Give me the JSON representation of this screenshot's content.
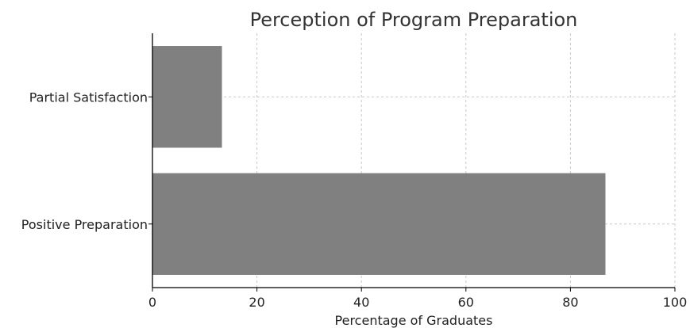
{
  "chart_data": {
    "type": "bar",
    "orientation": "horizontal",
    "title": "Perception of Program Preparation",
    "xlabel": "Percentage of Graduates",
    "ylabel": "",
    "categories": [
      "Positive Preparation",
      "Partial Satisfaction"
    ],
    "values": [
      86.7,
      13.3
    ],
    "xlim": [
      0,
      100
    ],
    "xticks": [
      "0",
      "20",
      "40",
      "60",
      "80",
      "100"
    ],
    "grid": true,
    "bar_color": "#808080"
  }
}
